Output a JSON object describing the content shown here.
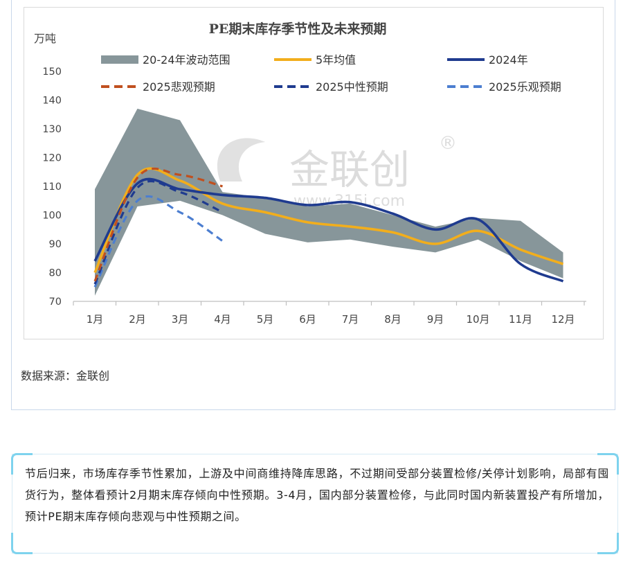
{
  "source_label": "数据来源：金联创",
  "watermark": {
    "brand": "金联创",
    "url": "www.315i.com",
    "mark": "®"
  },
  "note_text": "节后归来，市场库存季节性累加，上游及中间商维持降库思路，不过期间受部分装置检修/关停计划影响，局部有囤货行为，整体看预计2月期末库存倾向中性预期。3-4月，国内部分装置检修，与此同时国内新装置投产有所增加，预计PE期末库存倾向悲观与中性预期之间。",
  "chart_data": {
    "type": "line",
    "title": "PE期末库存季节性及未来预期",
    "ylabel": "万吨",
    "xlabel": "",
    "ylim": [
      70,
      150
    ],
    "yticks": [
      70,
      80,
      90,
      100,
      110,
      120,
      130,
      140,
      150
    ],
    "categories": [
      "1月",
      "2月",
      "3月",
      "4月",
      "5月",
      "6月",
      "7月",
      "8月",
      "9月",
      "10月",
      "11月",
      "12月"
    ],
    "grid": false,
    "legend_position": "top",
    "band": {
      "name": "20-24年波动范围",
      "color": "#87969a",
      "upper": [
        109,
        137,
        133,
        108,
        106,
        103,
        104,
        100,
        96,
        99,
        98,
        87
      ],
      "lower": [
        72,
        103,
        105,
        100,
        93.5,
        90.5,
        91.5,
        89,
        87,
        91.5,
        84,
        78
      ]
    },
    "series": [
      {
        "name": "5年均值",
        "color": "#f2ae1c",
        "style": "solid",
        "values": [
          80,
          114,
          112,
          104,
          101,
          97.5,
          96,
          94,
          90,
          94.5,
          88,
          83
        ]
      },
      {
        "name": "2024年",
        "color": "#1f3b8f",
        "style": "solid",
        "values": [
          84,
          111,
          109,
          107,
          106,
          103.5,
          104.5,
          100.5,
          95,
          98.5,
          83,
          77
        ]
      },
      {
        "name": "2025悲观预期",
        "color": "#c0501f",
        "style": "dashed",
        "values": [
          77,
          113,
          114,
          110,
          null,
          null,
          null,
          null,
          null,
          null,
          null,
          null
        ]
      },
      {
        "name": "2025中性预期",
        "color": "#1f3b8f",
        "style": "dashed",
        "values": [
          76,
          109.5,
          108,
          101,
          null,
          null,
          null,
          null,
          null,
          null,
          null,
          null
        ]
      },
      {
        "name": "2025乐观预期",
        "color": "#4c7ed0",
        "style": "dashed",
        "values": [
          75,
          105,
          101,
          91,
          null,
          null,
          null,
          null,
          null,
          null,
          null,
          null
        ]
      }
    ]
  }
}
